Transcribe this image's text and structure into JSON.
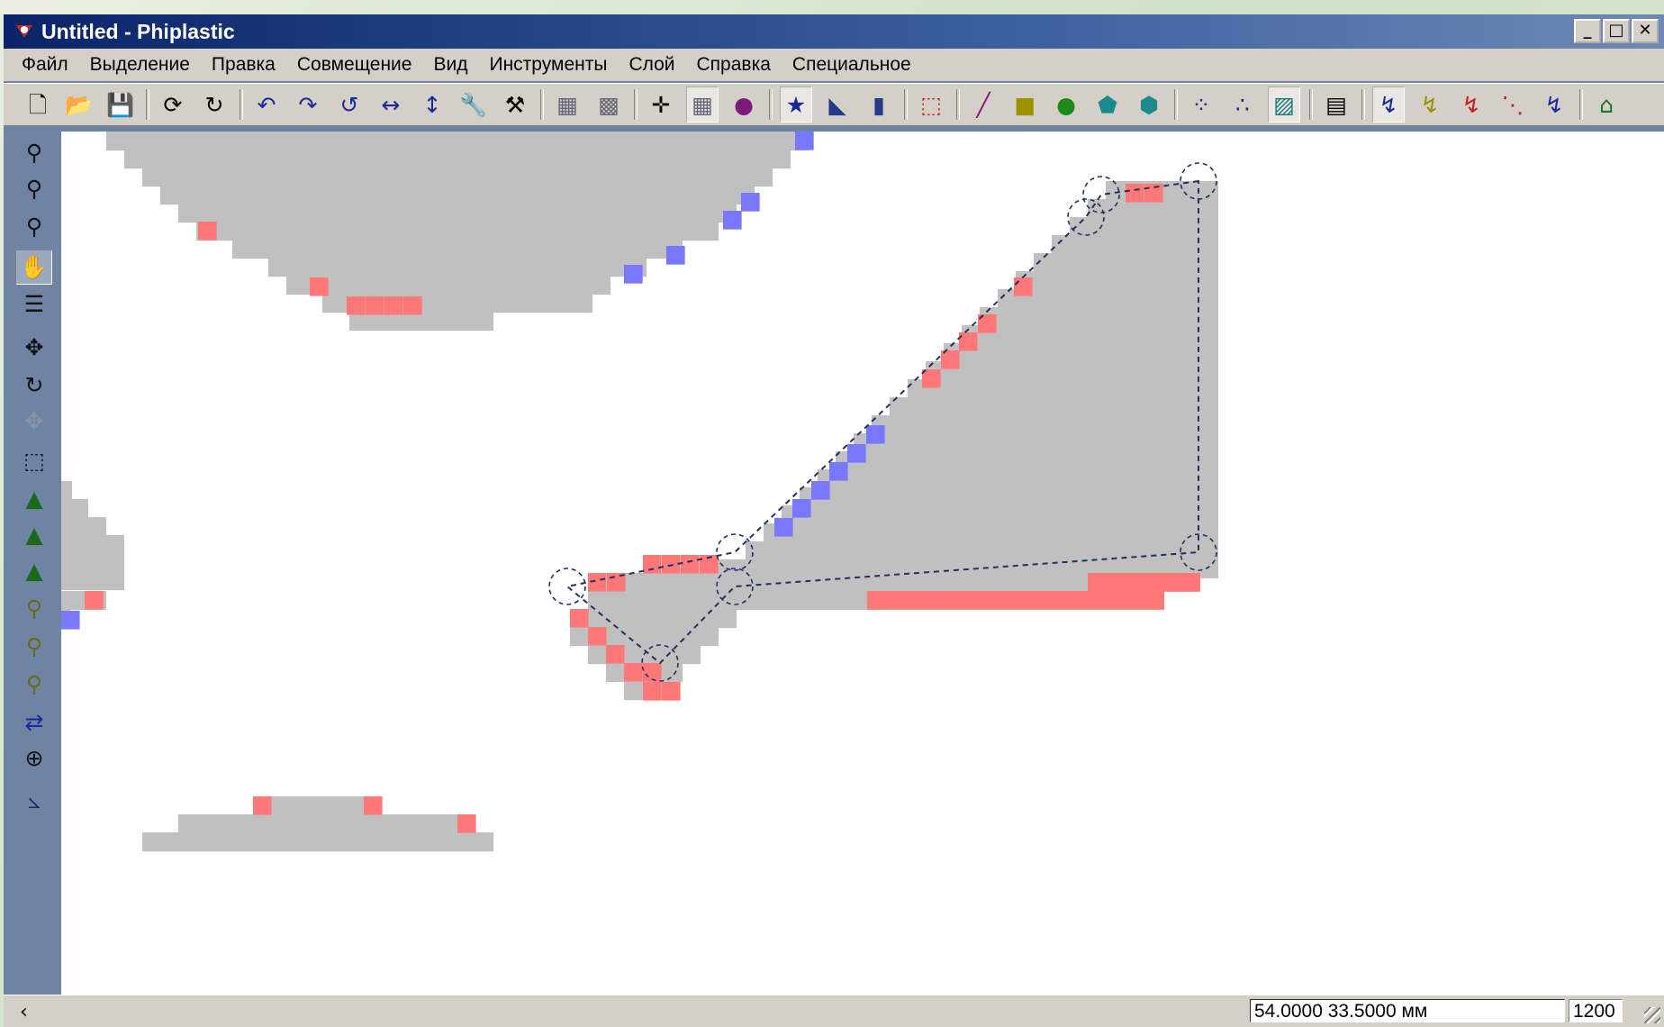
{
  "window": {
    "title": "Untitled - Phiplastic",
    "controls": {
      "minimize": "_",
      "maximize": "□",
      "close": "✕"
    }
  },
  "menu": [
    "Файл",
    "Выделение",
    "Правка",
    "Совмещение",
    "Вид",
    "Инструменты",
    "Слой",
    "Справка",
    "Специальное"
  ],
  "toolbar_icons": [
    "new-file-icon",
    "open-folder-icon",
    "save-icon",
    "|",
    "rotate-cw-icon",
    "redo-icon",
    "|",
    "undo-icon",
    "redo-arrow-icon",
    "rotate-icon",
    "flip-horizontal-icon",
    "flip-vertical-icon",
    "wrench-icon",
    "tool-icon",
    "|",
    "grid-icon",
    "grid-fine-icon",
    "|",
    "snap-center-icon",
    "snap-grid-icon",
    "snap-point-icon",
    "|",
    "star-angle-0-icon",
    "angle-45-icon",
    "angle-90-icon",
    "|",
    "selection-frame-icon",
    "|",
    "line-icon",
    "rectangle-icon",
    "circle-icon",
    "polygon-icon",
    "polygon-merge-icon",
    "|",
    "nodes-icon",
    "dots-icon",
    "hatch-icon",
    "|",
    "layer-icon",
    "|",
    "route-icon",
    "route-yellow-icon",
    "route-red-icon",
    "route-dots-icon",
    "route-blue-icon",
    "|",
    "home-icon"
  ],
  "left_toolbar_icons": [
    "add-point-icon",
    "remove-point-icon",
    "point-frame-icon",
    "pan-hand-icon",
    "properties-icon",
    "move-icon",
    "rotate-tool-icon",
    "move-disabled-icon",
    "select-rect-icon",
    "add-triangle-icon",
    "move-triangle-icon",
    "scale-triangle-icon",
    "scale-node-icon",
    "add-node-icon",
    "remove-node-icon",
    "rotate-node-icon",
    "target-icon",
    "measure-icon"
  ],
  "colors": {
    "fill": "#c0c0c0",
    "red_cell": "#ff7878",
    "blue_cell": "#7878ff",
    "path": "#203060"
  },
  "canvas": {
    "cell_size": 20.6,
    "origin_x": 0,
    "origin_y": 0
  },
  "status": {
    "coordinates": "54.0000 33.5000 мм",
    "zoom": "1200 %"
  }
}
